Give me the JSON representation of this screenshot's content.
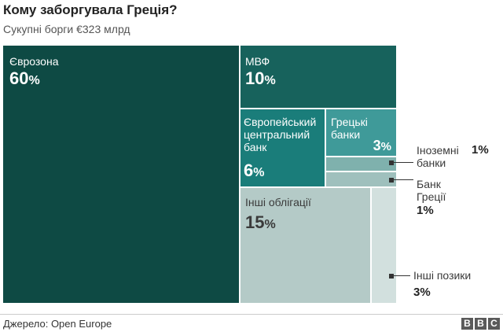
{
  "header": {
    "title": "Кому заборгувала Греція?",
    "subtitle": "Сукупні борги €323 млрд"
  },
  "colors": {
    "eurozone": "#0e4a44",
    "imf": "#17625c",
    "ecb": "#1a7d7a",
    "greek_banks": "#3f9a99",
    "foreign_banks": "#7fb1ad",
    "bank_of_greece": "#9fc0bd",
    "other_bonds": "#b4cac7",
    "other_loans": "#d2e0de"
  },
  "chart_data": {
    "type": "treemap",
    "title": "Кому заборгувала Греція?",
    "subtitle": "Сукупні борги €323 млрд",
    "unit": "%",
    "items": [
      {
        "label": "Єврозона",
        "value": 60
      },
      {
        "label": "МВФ",
        "value": 10
      },
      {
        "label": "Європейський центральний банк",
        "value": 6
      },
      {
        "label": "Грецькі банки",
        "value": 3
      },
      {
        "label": "Іноземні банки",
        "value": 1
      },
      {
        "label": "Банк Греції",
        "value": 1
      },
      {
        "label": "Інші облігації",
        "value": 15
      },
      {
        "label": "Інші позики",
        "value": 3
      }
    ]
  },
  "tiles": {
    "eurozone": {
      "label": "Єврозона",
      "value": "60",
      "unit": "%"
    },
    "imf": {
      "label": "МВФ",
      "value": "10",
      "unit": "%"
    },
    "ecb": {
      "label": "Європейський\nцентральний\nбанк",
      "value": "6",
      "unit": "%"
    },
    "greek_banks": {
      "label": "Грецькі\nбанки",
      "value": "3",
      "unit": "%"
    },
    "other_bonds": {
      "label": "Інші облігації",
      "value": "15",
      "unit": "%"
    }
  },
  "callouts": {
    "foreign_banks": {
      "label": "Іноземні\nбанки",
      "value": "1%"
    },
    "bank_of_greece": {
      "label": "Банк\nГреції",
      "value": "1%"
    },
    "other_loans": {
      "label": "Інші позики",
      "value": "3%"
    }
  },
  "footer": {
    "source": "Джерело: Open Europe",
    "logo_letters": [
      "B",
      "B",
      "C"
    ]
  }
}
